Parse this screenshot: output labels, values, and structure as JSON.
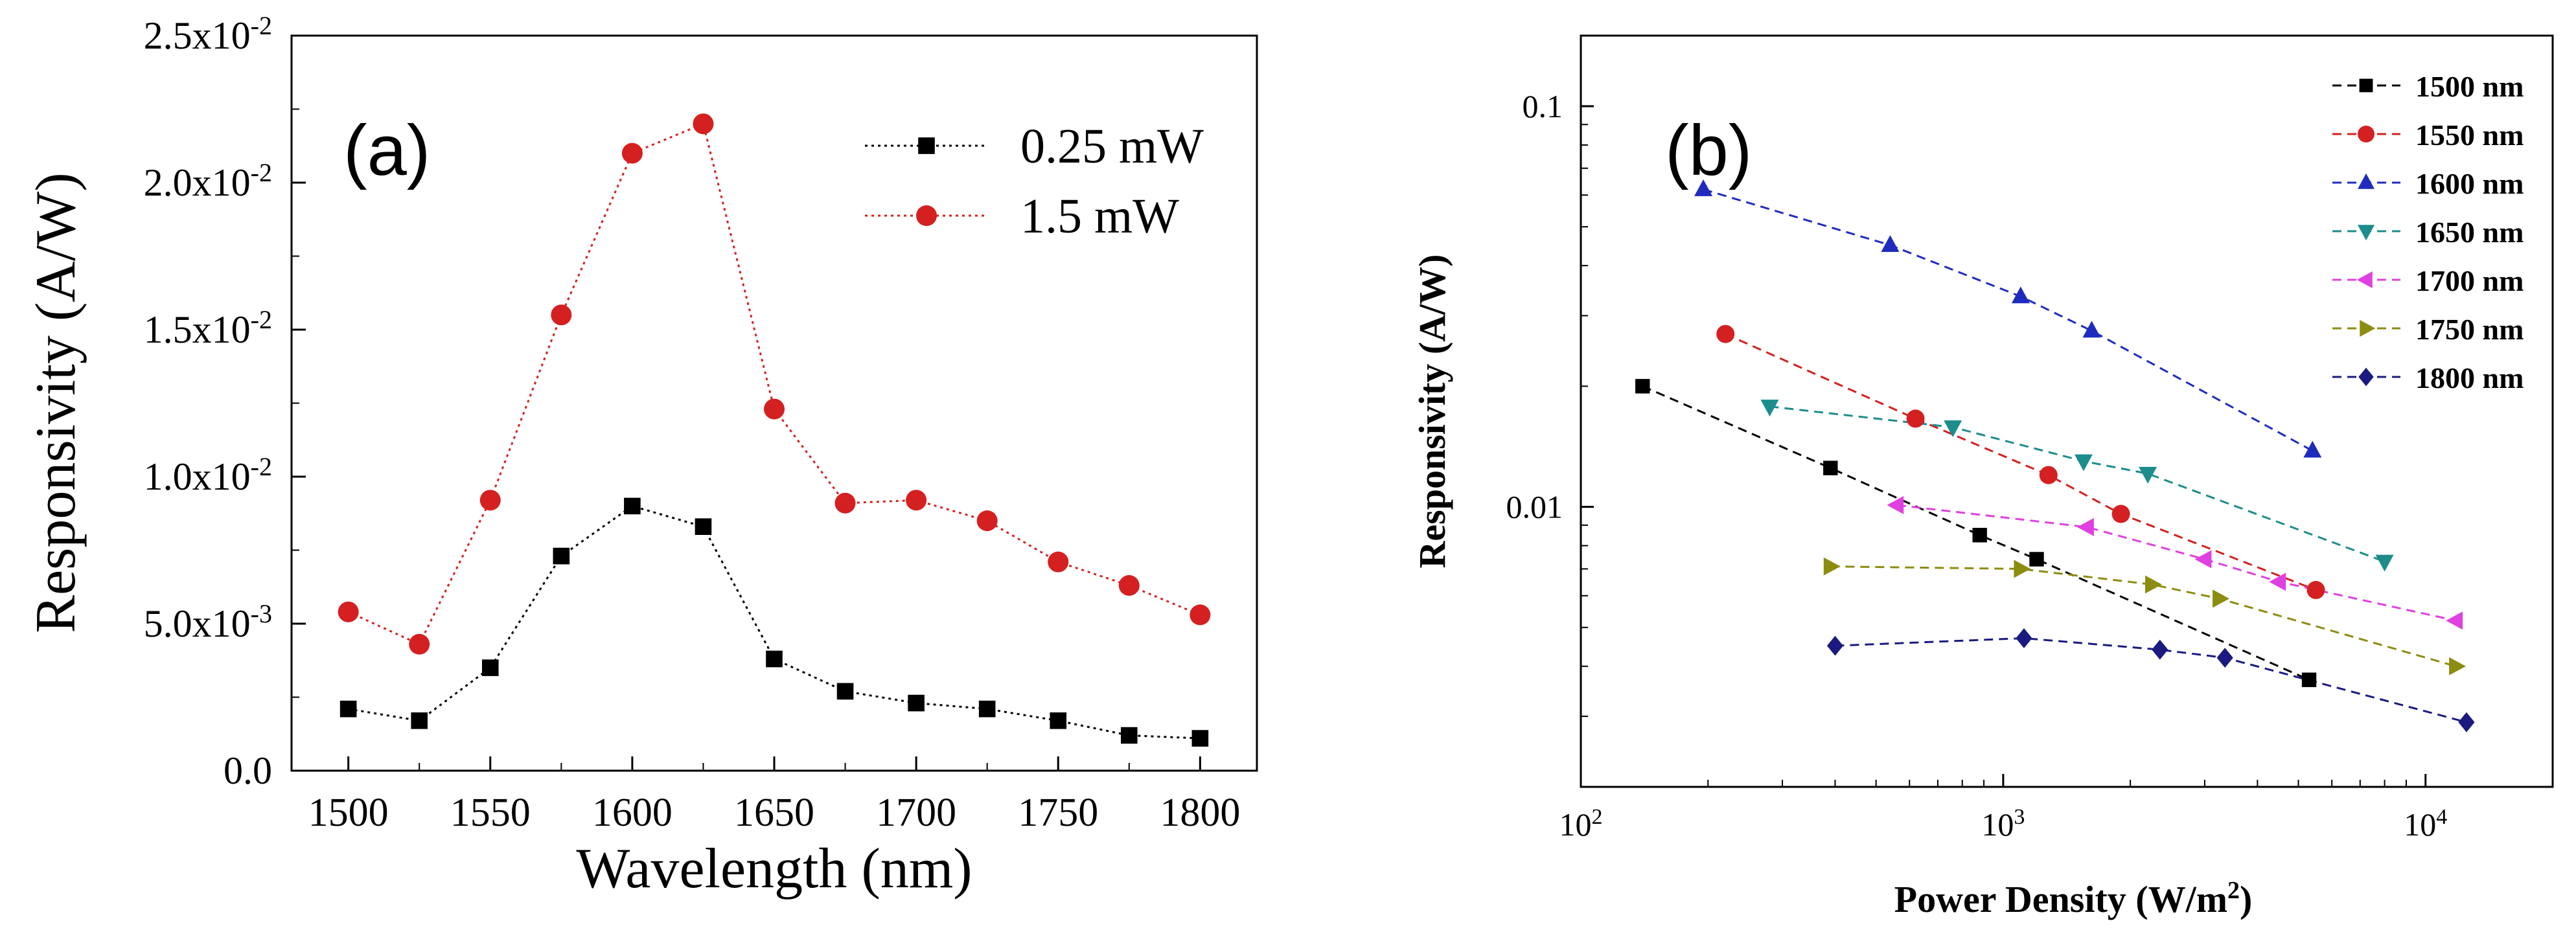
{
  "chart_data": [
    {
      "id": "a",
      "type": "line",
      "panel_label": "(a)",
      "xlabel": "Wavelength (nm)",
      "ylabel": "Responsivity (A/W)",
      "xlim": [
        1480,
        1820
      ],
      "ylim": [
        0,
        0.025
      ],
      "x_ticks": [
        1500,
        1550,
        1600,
        1650,
        1700,
        1750,
        1800
      ],
      "y_ticks": [
        {
          "value": 0,
          "label": "0.0"
        },
        {
          "value": 0.005,
          "label": "5.0x10",
          "exp": "-3"
        },
        {
          "value": 0.01,
          "label": "1.0x10",
          "exp": "-2"
        },
        {
          "value": 0.015,
          "label": "1.5x10",
          "exp": "-2"
        },
        {
          "value": 0.02,
          "label": "2.0x10",
          "exp": "-2"
        },
        {
          "value": 0.025,
          "label": "2.5x10",
          "exp": "-2"
        }
      ],
      "legend_position": "top-right",
      "x": [
        1500,
        1525,
        1550,
        1575,
        1600,
        1625,
        1650,
        1675,
        1700,
        1725,
        1750,
        1775,
        1800
      ],
      "series": [
        {
          "name": "0.25 mW",
          "marker": "square",
          "color": "#000000",
          "values": [
            0.0021,
            0.0017,
            0.0035,
            0.0073,
            0.009,
            0.0083,
            0.0038,
            0.0027,
            0.0023,
            0.0021,
            0.0017,
            0.0012,
            0.0011
          ]
        },
        {
          "name": "1.5 mW",
          "marker": "circle",
          "color": "#d42020",
          "values": [
            0.0054,
            0.0043,
            0.0092,
            0.0155,
            0.021,
            0.022,
            0.0123,
            0.0091,
            0.0092,
            0.0085,
            0.0071,
            0.0063,
            0.0053
          ]
        }
      ]
    },
    {
      "id": "b",
      "type": "line",
      "scale": "log-log",
      "panel_label": "(b)",
      "xlabel": "Power Density (W/m",
      "xlabel_sup": "2",
      "xlabel_end": ")",
      "ylabel": "Responsivity (A/W)",
      "xlim": [
        100,
        20000
      ],
      "ylim": [
        0.002,
        0.15
      ],
      "x_ticks": [
        {
          "value": 100,
          "base": "10",
          "exp": "2"
        },
        {
          "value": 1000,
          "base": "10",
          "exp": "3"
        },
        {
          "value": 10000,
          "base": "10",
          "exp": "4"
        }
      ],
      "y_ticks": [
        {
          "value": 0.01,
          "label": "0.01"
        },
        {
          "value": 0.1,
          "label": "0.1"
        }
      ],
      "legend_position": "top-right",
      "series": [
        {
          "name": "1500 nm",
          "marker": "square",
          "color": "#000000",
          "x": [
            140,
            390,
            880,
            1200,
            5300
          ],
          "y": [
            0.02,
            0.0125,
            0.0085,
            0.0074,
            0.0037
          ]
        },
        {
          "name": "1550 nm",
          "marker": "circle",
          "color": "#d42020",
          "x": [
            220,
            620,
            1280,
            1900,
            5500
          ],
          "y": [
            0.027,
            0.0166,
            0.012,
            0.0096,
            0.0062
          ]
        },
        {
          "name": "1600 nm",
          "marker": "triangle-up",
          "color": "#1f2bbf",
          "x": [
            195,
            540,
            1100,
            1620,
            5400
          ],
          "y": [
            0.062,
            0.045,
            0.0335,
            0.0275,
            0.0138
          ]
        },
        {
          "name": "1650 nm",
          "marker": "triangle-down",
          "color": "#1c8c8c",
          "x": [
            280,
            760,
            1550,
            2200,
            8000
          ],
          "y": [
            0.0178,
            0.0158,
            0.013,
            0.0121,
            0.0073
          ]
        },
        {
          "name": "1700 nm",
          "marker": "triangle-left",
          "color": "#e040e0",
          "x": [
            560,
            1580,
            3000,
            4500,
            11800
          ],
          "y": [
            0.0101,
            0.0089,
            0.0074,
            0.0065,
            0.0052
          ]
        },
        {
          "name": "1750 nm",
          "marker": "triangle-right",
          "color": "#8c8c10",
          "x": [
            390,
            1100,
            2250,
            3250,
            11800
          ],
          "y": [
            0.0071,
            0.007,
            0.0064,
            0.0059,
            0.004
          ]
        },
        {
          "name": "1800 nm",
          "marker": "diamond",
          "color": "#1a1a80",
          "x": [
            400,
            1120,
            2350,
            3350,
            12500
          ],
          "y": [
            0.0045,
            0.0047,
            0.0044,
            0.0042,
            0.0029
          ]
        }
      ]
    }
  ]
}
